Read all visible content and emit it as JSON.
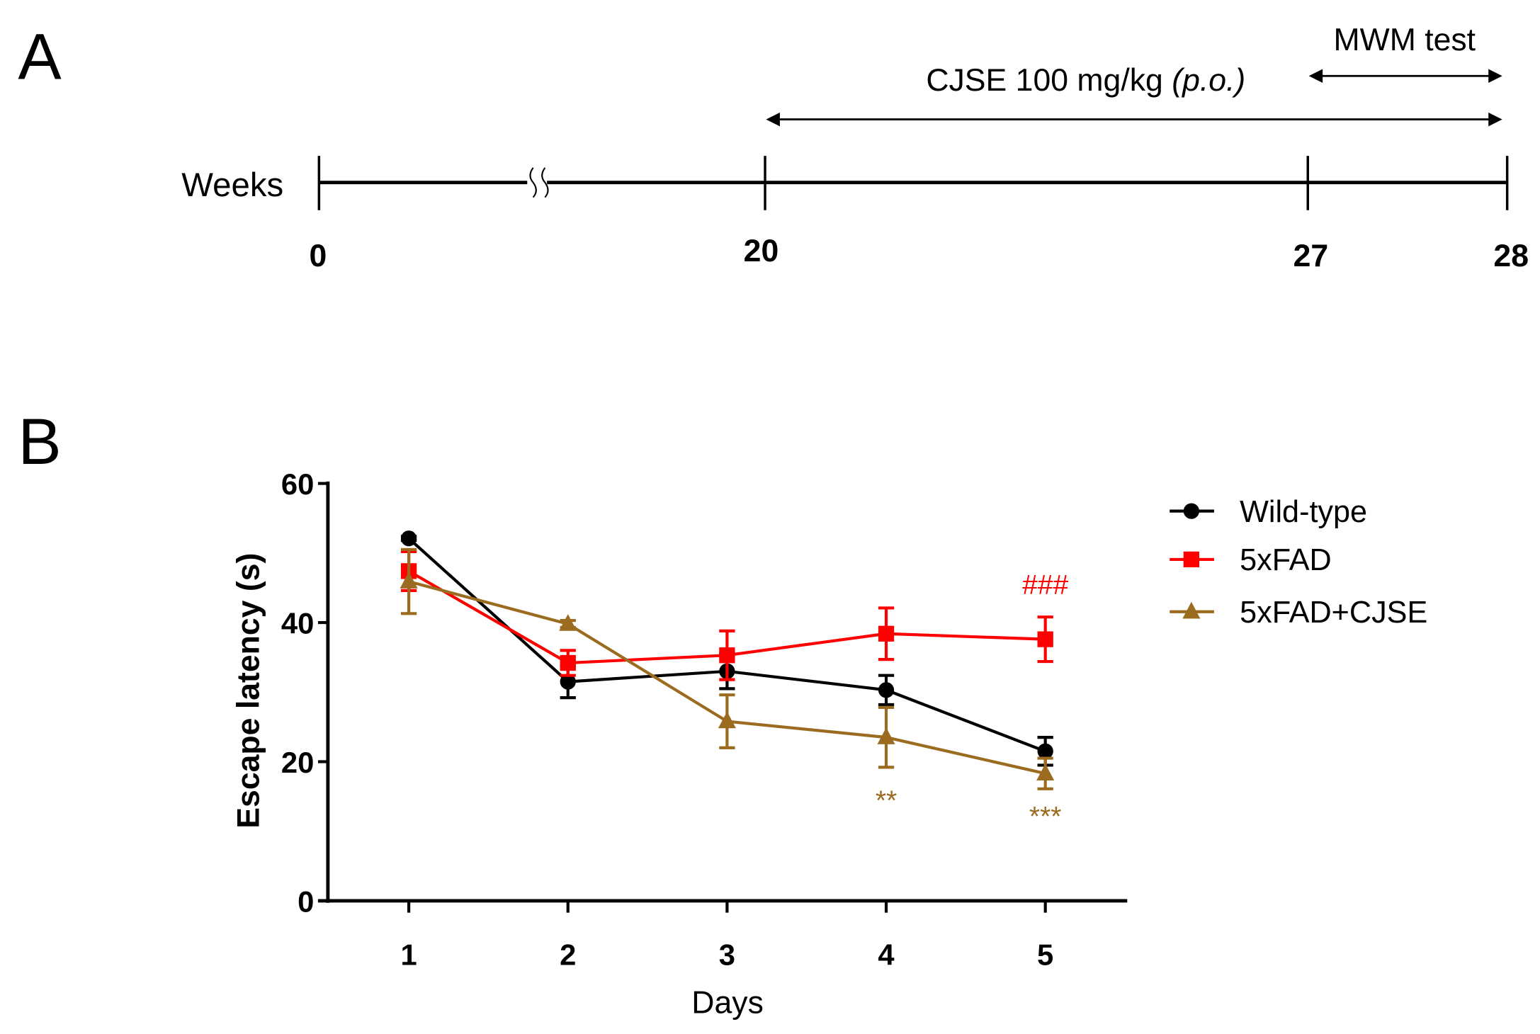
{
  "panel_a": {
    "label": "A",
    "axis_label": "Weeks",
    "ticks": [
      "0",
      "20",
      "27",
      "28"
    ],
    "treatment": {
      "text": "CJSE 100 mg/kg",
      "route": "(p.o.)",
      "from_week": 20,
      "to_week": 28
    },
    "test": {
      "text": "MWM test",
      "from_week": 27,
      "to_week": 28
    }
  },
  "panel_b": {
    "label": "B"
  },
  "chart_data": {
    "type": "line",
    "title": "",
    "xlabel": "Days",
    "ylabel": "Escape latency (s)",
    "x": [
      1,
      2,
      3,
      4,
      5
    ],
    "x_tick_labels": [
      "1",
      "2",
      "3",
      "4",
      "5"
    ],
    "y_tick_labels": [
      "0",
      "20",
      "40",
      "60"
    ],
    "y_ticks": [
      0,
      20,
      40,
      60
    ],
    "ylim": [
      0,
      60
    ],
    "legend_position": "top-right",
    "series": [
      {
        "name": "Wild-type",
        "color": "#000000",
        "marker": "circle",
        "values": [
          52.1,
          31.5,
          33.0,
          30.3,
          21.5
        ],
        "errors": [
          0.3,
          2.3,
          2.5,
          2.1,
          2.0
        ]
      },
      {
        "name": "5xFAD",
        "color": "#ff0000",
        "marker": "square",
        "values": [
          47.4,
          34.2,
          35.3,
          38.4,
          37.6
        ],
        "errors": [
          2.8,
          1.8,
          3.5,
          3.7,
          3.2
        ]
      },
      {
        "name": "5xFAD+CJSE",
        "color": "#9b6b1f",
        "marker": "triangle",
        "values": [
          45.9,
          39.8,
          25.8,
          23.5,
          18.3
        ],
        "errors": [
          4.6,
          0.5,
          3.8,
          4.3,
          2.2
        ]
      }
    ],
    "annotations": [
      {
        "text": "###",
        "x": 5,
        "y": 45.5,
        "color": "#ff0000"
      },
      {
        "text": "**",
        "x": 4,
        "y": 14.5,
        "color": "#9b6b1f"
      },
      {
        "text": "***",
        "x": 5,
        "y": 12.2,
        "color": "#9b6b1f"
      }
    ]
  }
}
